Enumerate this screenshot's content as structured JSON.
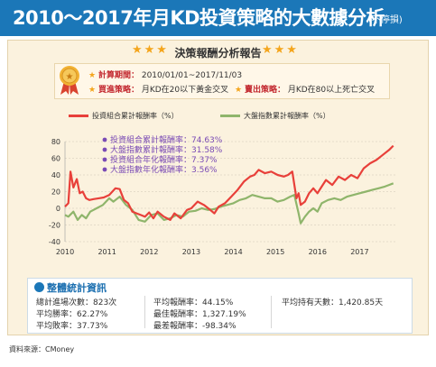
{
  "header": {
    "title": "2010～2017年月KD投資策略的大數據分析",
    "note": "(不停損)"
  },
  "report": {
    "title": "決策報酬分析報告",
    "stars_left": "★★★",
    "stars_right": "★★★",
    "period_label": "計算期間：",
    "period_value": "2010/01/01~2017/11/03",
    "buy_label": "買進策略：",
    "buy_value": "月KD在20以下黃金交叉",
    "sell_label": "賣出策略：",
    "sell_value": "月KD在80以上死亡交叉"
  },
  "colors": {
    "brand_blue": "#1b77b8",
    "portfolio": "#e8403a",
    "market": "#8fb56b",
    "star": "#f4a51c",
    "annotation": "#7a4bb5"
  },
  "chart_data": {
    "type": "line",
    "ylim": [
      -40,
      80
    ],
    "yticks": [
      -40,
      -20,
      0,
      20,
      40,
      60,
      80
    ],
    "xlim": [
      2010,
      2017.85
    ],
    "xticks": [
      2010,
      2011,
      2012,
      2013,
      2014,
      2015,
      2016,
      2017
    ],
    "grid": "horizontal",
    "legend_position": "top",
    "annotations": [
      "投資組合累計報酬率：74.63%",
      "大盤指數累計報酬率：31.58%",
      "投資組合年化報酬率：7.37%",
      "大盤指數年化報酬率：3.56%"
    ],
    "series": [
      {
        "name": "投資組合累計報酬率（%）",
        "x": [
          2010.0,
          2010.08,
          2010.13,
          2010.2,
          2010.28,
          2010.35,
          2010.42,
          2010.5,
          2010.58,
          2010.68,
          2010.8,
          2010.92,
          2011.05,
          2011.2,
          2011.3,
          2011.4,
          2011.5,
          2011.6,
          2011.7,
          2011.8,
          2011.9,
          2012.0,
          2012.1,
          2012.2,
          2012.35,
          2012.5,
          2012.6,
          2012.75,
          2012.9,
          2013.0,
          2013.15,
          2013.3,
          2013.45,
          2013.55,
          2013.65,
          2013.8,
          2013.95,
          2014.1,
          2014.25,
          2014.4,
          2014.5,
          2014.6,
          2014.75,
          2014.9,
          2015.05,
          2015.2,
          2015.3,
          2015.4,
          2015.5,
          2015.55,
          2015.6,
          2015.7,
          2015.8,
          2015.9,
          2016.0,
          2016.1,
          2016.2,
          2016.35,
          2016.5,
          2016.65,
          2016.8,
          2016.95,
          2017.1,
          2017.25,
          2017.4,
          2017.55,
          2017.7,
          2017.8
        ],
        "values": [
          2,
          6,
          44,
          25,
          35,
          18,
          20,
          12,
          10,
          11,
          12,
          13,
          16,
          24,
          23,
          10,
          6,
          -4,
          -6,
          -8,
          -10,
          -5,
          -12,
          -4,
          -10,
          -14,
          -6,
          -12,
          -2,
          0,
          8,
          4,
          -2,
          -6,
          2,
          6,
          14,
          22,
          32,
          38,
          40,
          46,
          42,
          44,
          40,
          38,
          40,
          44,
          12,
          18,
          4,
          8,
          18,
          24,
          18,
          26,
          34,
          28,
          38,
          34,
          40,
          36,
          48,
          54,
          58,
          64,
          70,
          75
        ]
      },
      {
        "name": "大盤指數累計報酬率（%）",
        "x": [
          2010.0,
          2010.08,
          2010.2,
          2010.3,
          2010.4,
          2010.5,
          2010.6,
          2010.75,
          2010.9,
          2011.05,
          2011.15,
          2011.3,
          2011.45,
          2011.6,
          2011.75,
          2011.9,
          2012.05,
          2012.2,
          2012.35,
          2012.5,
          2012.65,
          2012.8,
          2012.95,
          2013.1,
          2013.25,
          2013.4,
          2013.55,
          2013.7,
          2013.85,
          2014.0,
          2014.15,
          2014.3,
          2014.45,
          2014.6,
          2014.75,
          2014.9,
          2015.05,
          2015.2,
          2015.35,
          2015.45,
          2015.55,
          2015.6,
          2015.7,
          2015.8,
          2015.9,
          2016.0,
          2016.1,
          2016.25,
          2016.4,
          2016.55,
          2016.7,
          2016.85,
          2017.0,
          2017.15,
          2017.3,
          2017.45,
          2017.6,
          2017.7,
          2017.8
        ],
        "values": [
          -8,
          -10,
          -4,
          -14,
          -8,
          -12,
          -4,
          0,
          4,
          12,
          8,
          14,
          4,
          -2,
          -14,
          -16,
          -8,
          -6,
          -14,
          -12,
          -8,
          -10,
          -4,
          -3,
          0,
          -2,
          -1,
          2,
          4,
          6,
          10,
          12,
          16,
          14,
          12,
          12,
          8,
          10,
          14,
          16,
          -6,
          -18,
          -10,
          -4,
          0,
          -4,
          6,
          10,
          12,
          10,
          14,
          16,
          18,
          20,
          22,
          24,
          26,
          28,
          30
        ]
      }
    ]
  },
  "stats": {
    "title": "整體統計資訊",
    "col1": [
      "總計進場次數：823次",
      "平均勝率：62.27%",
      "平均敗率：37.73%"
    ],
    "col2": [
      "平均報酬率：44.15%",
      "最佳報酬率：1,327.19%",
      "最差報酬率：-98.34%"
    ],
    "col3": [
      "平均持有天數：1,420.85天"
    ]
  },
  "source": "資料來源：CMoney"
}
